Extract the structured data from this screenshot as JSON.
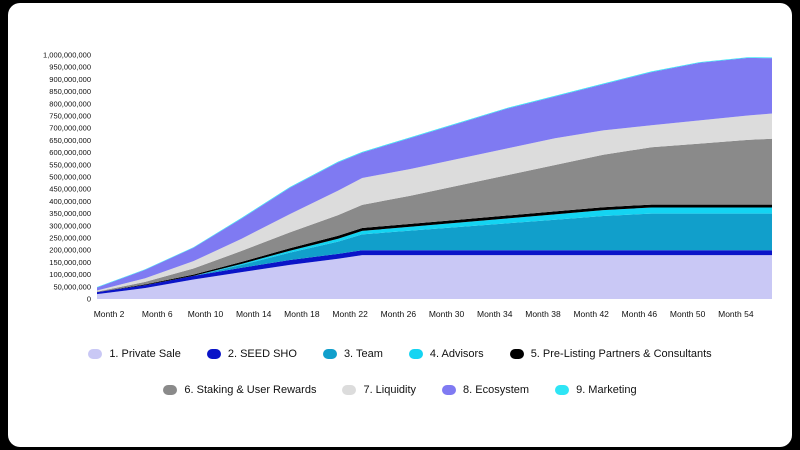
{
  "chart_data": {
    "type": "area",
    "stacked": true,
    "title": "",
    "xlabel": "",
    "ylabel": "",
    "ylim": [
      0,
      1000000000
    ],
    "yticks": [
      0,
      50000000,
      100000000,
      150000000,
      200000000,
      250000000,
      300000000,
      350000000,
      400000000,
      450000000,
      500000000,
      550000000,
      600000000,
      650000000,
      700000000,
      750000000,
      800000000,
      850000000,
      900000000,
      950000000,
      1000000000
    ],
    "ytick_labels": [
      "0",
      "50,000,000",
      "100,000,000",
      "150,000,000",
      "200,000,000",
      "250,000,000",
      "300,000,000",
      "350,000,000",
      "400,000,000",
      "450,000,000",
      "500,000,000",
      "550,000,000",
      "600,000,000",
      "650,000,000",
      "700,000,000",
      "750,000,000",
      "800,000,000",
      "850,000,000",
      "900,000,000",
      "950,000,000",
      "1,000,000,000"
    ],
    "x_range": [
      1,
      57
    ],
    "x_ticks": [
      2,
      6,
      10,
      14,
      18,
      22,
      26,
      30,
      34,
      38,
      42,
      46,
      50,
      54
    ],
    "x_tick_labels": [
      "Month 2",
      "Month 6",
      "Month 10",
      "Month 14",
      "Month 18",
      "Month 22",
      "Month 26",
      "Month 30",
      "Month 34",
      "Month 38",
      "Month 42",
      "Month 46",
      "Month 50",
      "Month 54"
    ],
    "x": [
      1,
      5,
      9,
      13,
      17,
      21,
      23,
      27,
      31,
      35,
      39,
      43,
      47,
      51,
      55,
      57
    ],
    "legend_position": "bottom",
    "series": [
      {
        "name": "1. Private Sale",
        "color": "#c9c8f5",
        "values": [
          20000000,
          45000000,
          80000000,
          110000000,
          140000000,
          165000000,
          180000000,
          180000000,
          180000000,
          180000000,
          180000000,
          180000000,
          180000000,
          180000000,
          180000000,
          180000000
        ]
      },
      {
        "name": "2. SEED SHO",
        "color": "#0a14c8",
        "values": [
          8000000,
          12000000,
          15000000,
          18000000,
          20000000,
          20000000,
          20000000,
          20000000,
          20000000,
          20000000,
          20000000,
          20000000,
          20000000,
          20000000,
          20000000,
          20000000
        ]
      },
      {
        "name": "3. Team",
        "color": "#119fcb",
        "values": [
          0,
          0,
          0,
          12000000,
          30000000,
          50000000,
          65000000,
          80000000,
          95000000,
          110000000,
          125000000,
          140000000,
          150000000,
          150000000,
          150000000,
          150000000
        ]
      },
      {
        "name": "4. Advisors",
        "color": "#14d4f2",
        "values": [
          0,
          0,
          0,
          4000000,
          8000000,
          12000000,
          14000000,
          16000000,
          18000000,
          20000000,
          22000000,
          24000000,
          25000000,
          25000000,
          25000000,
          25000000
        ]
      },
      {
        "name": "5. Pre-Listing Partners & Consultants",
        "color": "#000000",
        "values": [
          0,
          3000000,
          5000000,
          8000000,
          10000000,
          12000000,
          12000000,
          12000000,
          12000000,
          12000000,
          12000000,
          12000000,
          12000000,
          12000000,
          12000000,
          12000000
        ]
      },
      {
        "name": "6. Staking & User Rewards",
        "color": "#8a8a8a",
        "values": [
          2000000,
          10000000,
          25000000,
          45000000,
          65000000,
          85000000,
          95000000,
          115000000,
          140000000,
          165000000,
          190000000,
          215000000,
          235000000,
          250000000,
          265000000,
          270000000
        ]
      },
      {
        "name": "7. Liquidity",
        "color": "#dcdcdc",
        "values": [
          5000000,
          15000000,
          30000000,
          50000000,
          75000000,
          100000000,
          110000000,
          110000000,
          110000000,
          110000000,
          110000000,
          100000000,
          90000000,
          95000000,
          100000000,
          103000000
        ]
      },
      {
        "name": "8. Ecosystem",
        "color": "#7f7af2",
        "values": [
          12000000,
          35000000,
          55000000,
          83000000,
          108000000,
          116000000,
          104000000,
          127000000,
          145000000,
          163000000,
          171000000,
          189000000,
          218000000,
          236000000,
          236000000,
          227000000
        ]
      },
      {
        "name": "9. Marketing",
        "color": "#2fe5f5",
        "values": [
          2000000,
          2000000,
          2000000,
          3000000,
          3000000,
          3000000,
          3000000,
          3000000,
          3000000,
          3000000,
          3000000,
          3000000,
          3000000,
          3000000,
          3000000,
          3000000
        ]
      }
    ]
  }
}
